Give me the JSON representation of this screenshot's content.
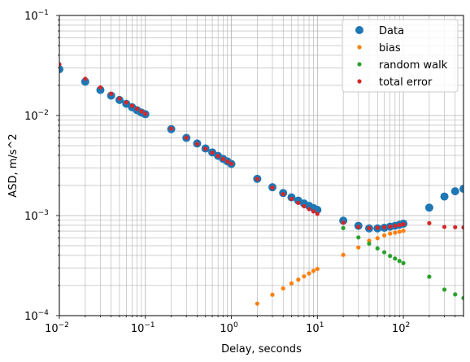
{
  "chart_data": {
    "type": "scatter",
    "title": "",
    "xlabel": "Delay, seconds",
    "ylabel": "ASD, m/s^2",
    "xscale": "log",
    "yscale": "log",
    "xlim": [
      0.01,
      500
    ],
    "ylim": [
      0.0001,
      0.1
    ],
    "grid": "major-and-minor",
    "legend_position": "top-right",
    "x_ticks": [
      {
        "value": 0.01,
        "base": "10",
        "exp": "−2"
      },
      {
        "value": 0.1,
        "base": "10",
        "exp": "−1"
      },
      {
        "value": 1,
        "base": "10",
        "exp": "0"
      },
      {
        "value": 10,
        "base": "10",
        "exp": "1"
      },
      {
        "value": 100,
        "base": "10",
        "exp": "2"
      }
    ],
    "y_ticks": [
      {
        "value": 0.0001,
        "base": "10",
        "exp": "−4"
      },
      {
        "value": 0.001,
        "base": "10",
        "exp": "−3"
      },
      {
        "value": 0.01,
        "base": "10",
        "exp": "−2"
      },
      {
        "value": 0.1,
        "base": "10",
        "exp": "−1"
      }
    ],
    "series": [
      {
        "name": "Data",
        "color": "#1f77b4",
        "marker_size": "large",
        "x": [
          0.01,
          0.02,
          0.03,
          0.04,
          0.05,
          0.06,
          0.07,
          0.08,
          0.09,
          0.1,
          0.2,
          0.3,
          0.4,
          0.5,
          0.6,
          0.7,
          0.8,
          0.9,
          1,
          2,
          3,
          4,
          5,
          6,
          7,
          8,
          9,
          10,
          20,
          30,
          40,
          50,
          60,
          70,
          80,
          90,
          100,
          200,
          300,
          400,
          500
        ],
        "y": [
          0.029,
          0.0218,
          0.018,
          0.0158,
          0.0143,
          0.0131,
          0.0121,
          0.0113,
          0.0107,
          0.0103,
          0.0073,
          0.00597,
          0.00525,
          0.00468,
          0.00428,
          0.00395,
          0.00369,
          0.00348,
          0.00328,
          0.00233,
          0.00192,
          0.00168,
          0.00152,
          0.00141,
          0.00132,
          0.00125,
          0.00119,
          0.00114,
          0.00089,
          0.00079,
          0.000745,
          0.000745,
          0.000755,
          0.000775,
          0.00079,
          0.00081,
          0.00083,
          0.0012,
          0.00155,
          0.00175,
          0.00185
        ]
      },
      {
        "name": "bias",
        "color": "#ff7f0e",
        "marker_size": "small",
        "x": [
          2,
          3,
          4,
          5,
          6,
          7,
          8,
          9,
          10,
          20,
          30,
          40,
          50,
          60,
          70,
          80,
          90,
          100
        ],
        "y": [
          0.000132,
          0.000162,
          0.000187,
          0.00021,
          0.000229,
          0.000247,
          0.000264,
          0.00028,
          0.000293,
          0.000405,
          0.00048,
          0.00056,
          0.000595,
          0.000635,
          0.00066,
          0.000675,
          0.00069,
          0.000705
        ]
      },
      {
        "name": "random walk",
        "color": "#2ca02c",
        "marker_size": "small",
        "x": [
          20,
          30,
          40,
          50,
          60,
          70,
          80,
          90,
          100,
          200,
          300,
          400,
          500
        ],
        "y": [
          0.00075,
          0.000605,
          0.000525,
          0.00047,
          0.00043,
          0.000395,
          0.000372,
          0.000352,
          0.000335,
          0.000245,
          0.000182,
          0.000163,
          0.00015
        ]
      },
      {
        "name": "total error",
        "color": "#d62728",
        "marker_size": "small",
        "x": [
          0.01,
          0.02,
          0.03,
          0.04,
          0.05,
          0.06,
          0.07,
          0.08,
          0.09,
          0.1,
          0.2,
          0.3,
          0.4,
          0.5,
          0.6,
          0.7,
          0.8,
          0.9,
          1,
          2,
          3,
          4,
          5,
          6,
          7,
          8,
          9,
          10,
          20,
          30,
          40,
          50,
          60,
          70,
          80,
          90,
          100,
          200,
          300,
          400,
          500
        ],
        "y": [
          0.0325,
          0.0233,
          0.0191,
          0.0165,
          0.0148,
          0.0135,
          0.0125,
          0.0117,
          0.011,
          0.0104,
          0.0074,
          0.006,
          0.0052,
          0.00466,
          0.00425,
          0.00394,
          0.00368,
          0.00347,
          0.0033,
          0.00232,
          0.0019,
          0.00164,
          0.00147,
          0.00134,
          0.00124,
          0.00116,
          0.0011,
          0.00104,
          0.00085,
          0.00077,
          0.00075,
          0.000755,
          0.000765,
          0.000775,
          0.00079,
          0.000805,
          0.00082,
          0.00084,
          0.00077,
          0.000765,
          0.00076
        ]
      }
    ]
  }
}
